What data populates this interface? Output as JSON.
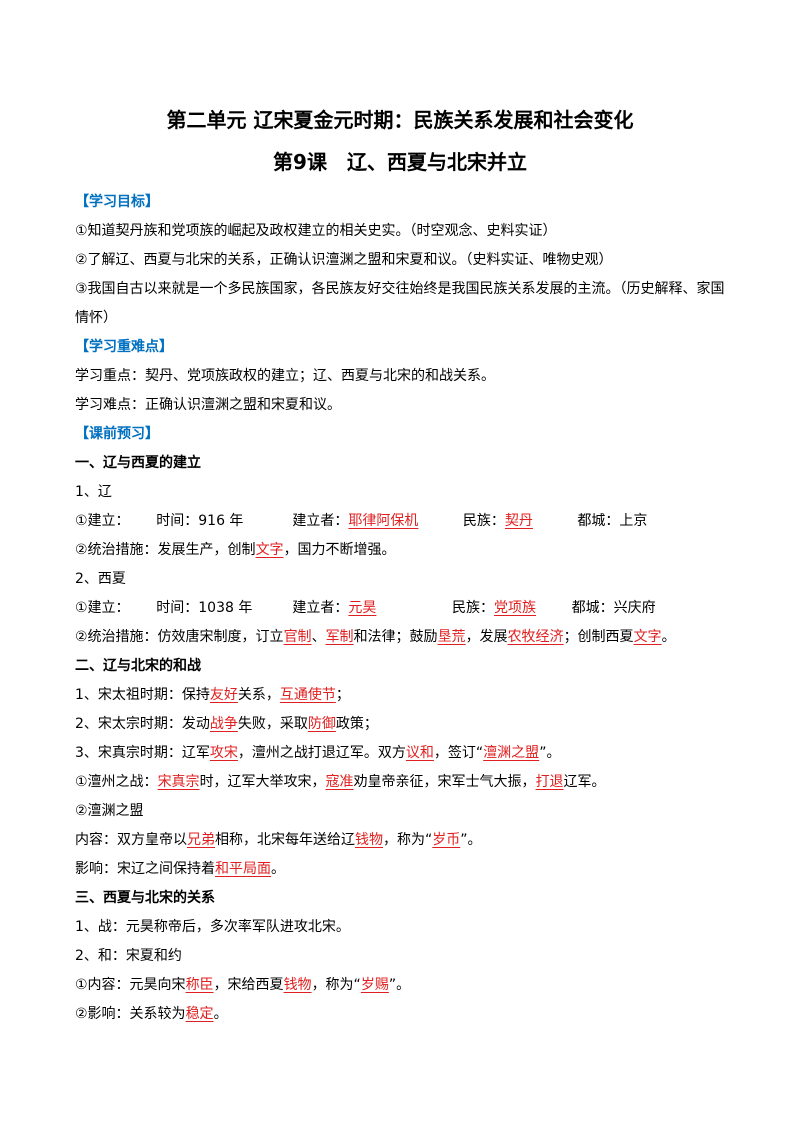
{
  "title": "第二单元 辽宋夏金元时期：民族关系发展和社会变化",
  "subtitle": "第9课　辽、西夏与北宋并立",
  "body": [
    {
      "style": "label",
      "parts": [
        "【学习目标】"
      ]
    },
    {
      "style": "text",
      "parts": [
        "①知道契丹族和党项族的崛起及政权建立的相关史实。（时空观念、史料实证）"
      ]
    },
    {
      "style": "text",
      "parts": [
        "②了解辽、西夏与北宋的关系，正确认识澶渊之盟和宋夏和议。（史料实证、唯物史观）"
      ]
    },
    {
      "style": "text",
      "parts": [
        "③我国自古以来就是一个多民族国家，各民族友好交往始终是我国民族关系发展的主流。（历史解释、家国情怀）"
      ]
    },
    {
      "style": "label",
      "parts": [
        "【学习重难点】"
      ]
    },
    {
      "style": "text",
      "parts": [
        "学习重点：契丹、党项族政权的建立；辽、西夏与北宋的和战关系。"
      ]
    },
    {
      "style": "text",
      "parts": [
        "学习难点：正确认识澶渊之盟和宋夏和议。"
      ]
    },
    {
      "style": "label",
      "parts": [
        "【课前预习】"
      ]
    },
    {
      "style": "heading",
      "parts": [
        "一、辽与西夏的建立"
      ]
    },
    {
      "style": "text",
      "parts": [
        "1、辽"
      ]
    },
    {
      "style": "text",
      "parts": [
        "①建立：      时间：916 年           建立者：",
        {
          "blank": "耶律阿保机"
        },
        "          民族：",
        {
          "blank": "契丹"
        },
        "          都城：上京"
      ]
    },
    {
      "style": "text",
      "parts": [
        "②统治措施：发展生产，创制",
        {
          "blank": "文字"
        },
        "，国力不断增强。"
      ]
    },
    {
      "style": "text",
      "parts": [
        "2、西夏"
      ]
    },
    {
      "style": "text",
      "parts": [
        "①建立：      时间：1038 年         建立者：",
        {
          "blank": "元昊"
        },
        "                 民族：",
        {
          "blank": "党项族"
        },
        "        都城：兴庆府"
      ]
    },
    {
      "style": "text",
      "parts": [
        "②统治措施：仿效唐宋制度，订立",
        {
          "blank": "官制"
        },
        "、",
        {
          "blank": "军制"
        },
        "和法律；鼓励",
        {
          "blank": "垦荒"
        },
        "，发展",
        {
          "blank": "农牧经济"
        },
        "；创制西夏",
        {
          "blank": "文字"
        },
        "。"
      ]
    },
    {
      "style": "heading",
      "parts": [
        "二、辽与北宋的和战"
      ]
    },
    {
      "style": "text",
      "parts": [
        "1、宋太祖时期：保持",
        {
          "blank": "友好"
        },
        "关系，",
        {
          "blank": "互通使节"
        },
        "；"
      ]
    },
    {
      "style": "text",
      "parts": [
        "2、宋太宗时期：发动",
        {
          "blank": "战争"
        },
        "失败，采取",
        {
          "blank": "防御"
        },
        "政策；"
      ]
    },
    {
      "style": "text",
      "parts": [
        "3、宋真宗时期：辽军",
        {
          "blank": "攻宋"
        },
        "，澶州之战打退辽军。双方",
        {
          "blank": "议和"
        },
        "，签订“",
        {
          "blank": "澶渊之盟"
        },
        "”。"
      ]
    },
    {
      "style": "text",
      "parts": [
        "①澶州之战：",
        {
          "blank": "宋真宗"
        },
        "时，辽军大举攻宋，",
        {
          "blank": "寇准"
        },
        "劝皇帝亲征，宋军士气大振，",
        {
          "blank": "打退"
        },
        "辽军。"
      ]
    },
    {
      "style": "text",
      "parts": [
        "②澶渊之盟"
      ]
    },
    {
      "style": "text",
      "parts": [
        "内容：双方皇帝以",
        {
          "blank": "兄弟"
        },
        "相称，北宋每年送给辽",
        {
          "blank": "钱物"
        },
        "，称为“",
        {
          "blank": "岁币"
        },
        "”。"
      ]
    },
    {
      "style": "text",
      "parts": [
        "影响：宋辽之间保持着",
        {
          "blank": "和平局面"
        },
        "。"
      ]
    },
    {
      "style": "heading",
      "parts": [
        "三、西夏与北宋的关系"
      ]
    },
    {
      "style": "text",
      "parts": [
        "1、战：元昊称帝后，多次率军队进攻北宋。"
      ]
    },
    {
      "style": "text",
      "parts": [
        "2、和：宋夏和约"
      ]
    },
    {
      "style": "text",
      "parts": [
        "①内容：元昊向宋",
        {
          "blank": "称臣"
        },
        "，宋给西夏",
        {
          "blank": "钱物"
        },
        "，称为“",
        {
          "blank": "岁赐"
        },
        "”。"
      ]
    },
    {
      "style": "text",
      "parts": [
        "②影响：关系较为",
        {
          "blank": "稳定"
        },
        "。"
      ]
    }
  ]
}
